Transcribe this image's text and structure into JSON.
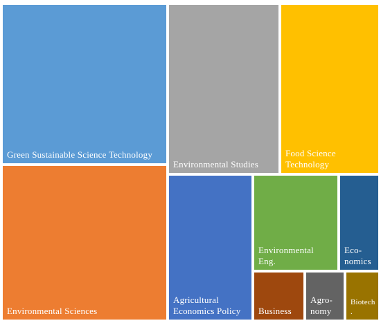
{
  "chart_data": {
    "type": "treemap",
    "items": [
      {
        "name": "Green Sustainable Science Technology",
        "label": "Green Sustainable Science Technology",
        "value": 24.4,
        "color": "#5B9BD5"
      },
      {
        "name": "Environmental Sciences",
        "label": "Environmental Sciences",
        "value": 23.7,
        "color": "#ED7D31"
      },
      {
        "name": "Environmental Studies",
        "label": "Environmental Studies",
        "value": 15.0,
        "color": "#A5A5A5"
      },
      {
        "name": "Food Science Technology",
        "label": "Food Science\nTechnology",
        "value": 11.7,
        "color": "#FFC000"
      },
      {
        "name": "Agricultural Economics Policy",
        "label": "Agricultural\nEconomics Policy",
        "value": 8.8,
        "color": "#4472C4"
      },
      {
        "name": "Environmental Eng.",
        "label": "Environmental\nEng.",
        "value": 5.7,
        "color": "#70AD47"
      },
      {
        "name": "Economics",
        "label": "Eco-\nnomics",
        "value": 3.5,
        "color": "#255E91"
      },
      {
        "name": "Business",
        "label": "Business",
        "value": 3.1,
        "color": "#9E480E"
      },
      {
        "name": "Agronomy",
        "label": "Agro-\nnomy",
        "value": 2.4,
        "color": "#636363"
      },
      {
        "name": "Biotech",
        "label": "Biotech\n.",
        "value": 1.9,
        "color": "#997300"
      }
    ]
  }
}
